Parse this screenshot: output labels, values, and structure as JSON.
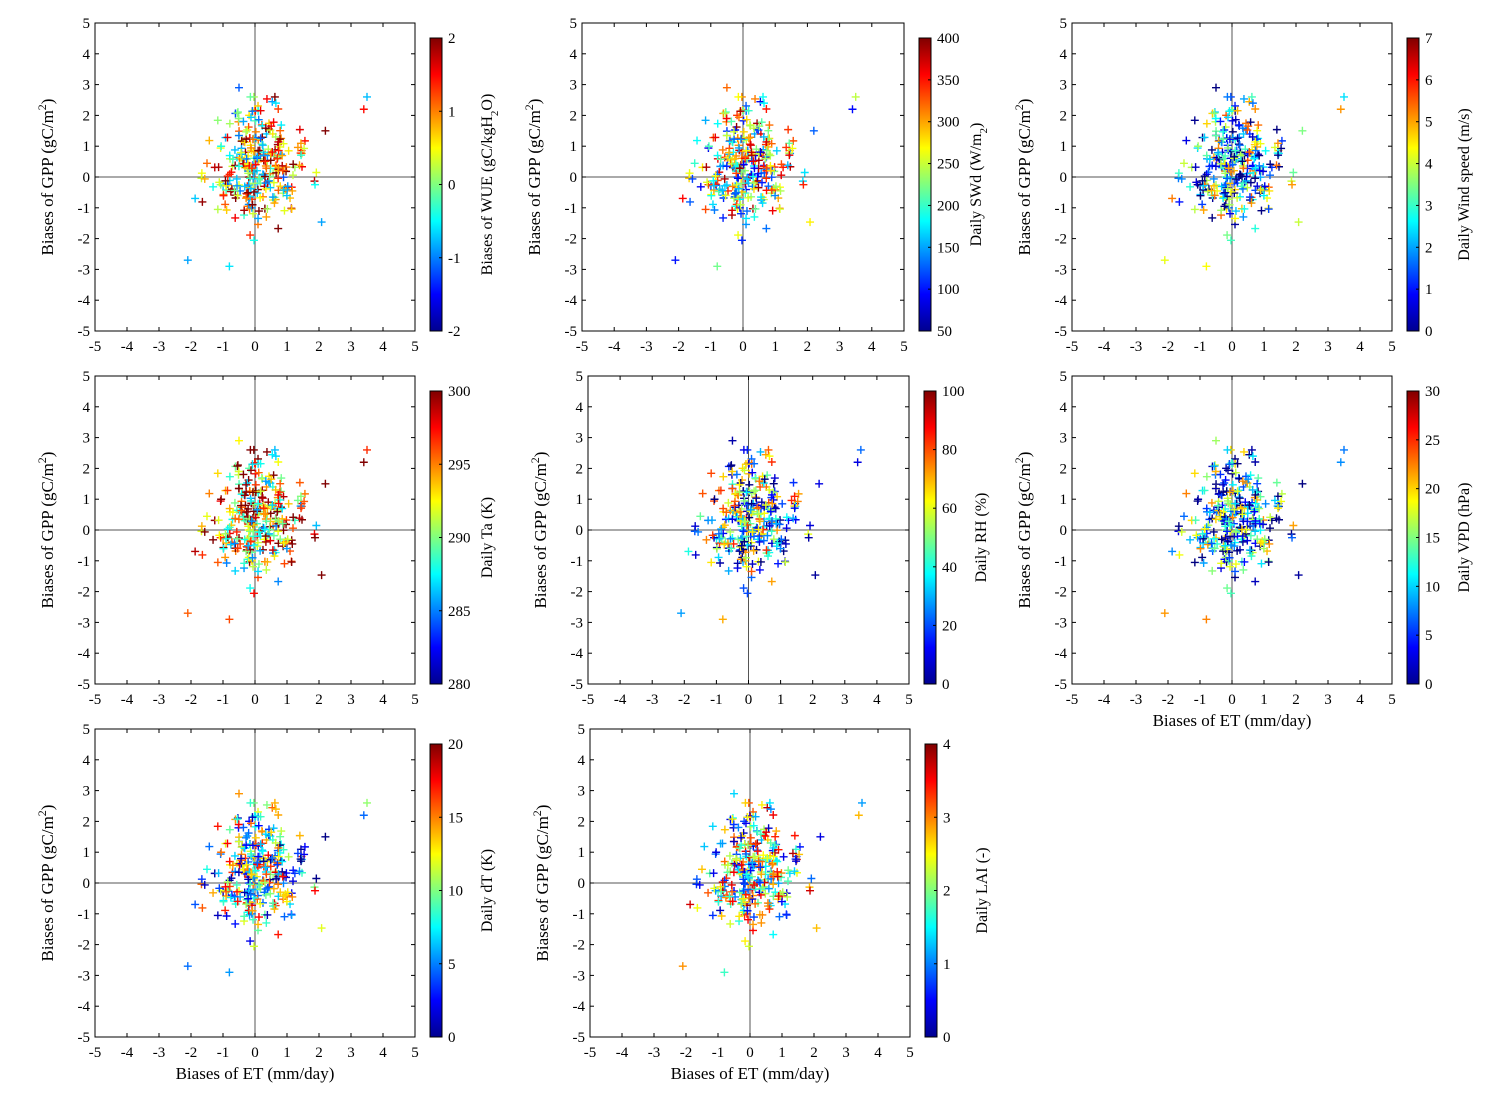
{
  "figure": {
    "x_axis_label": "Biases of ET (mm/day)",
    "y_axis_label": "Biases of GPP (gC/m",
    "y_axis_label_sup": "2",
    "y_axis_label_end": ")"
  },
  "chart_data": [
    {
      "type": "scatter",
      "marker": "+",
      "title": "",
      "xlabel": "Biases of ET (mm/day)",
      "ylabel": "Biases of GPP (gC/m2)",
      "xlim": [
        -5,
        5
      ],
      "ylim": [
        -5,
        5
      ],
      "x_ticks": [
        -5,
        -4,
        -3,
        -2,
        -1,
        0,
        1,
        2,
        3,
        4,
        5
      ],
      "y_ticks": [
        -5,
        -4,
        -3,
        -2,
        -1,
        0,
        1,
        2,
        3,
        4,
        5
      ],
      "show_xlabel": false,
      "colorbar": {
        "label_parts": [
          "Biases of WUE (gC/kgH",
          "2",
          "O)"
        ],
        "min": -2,
        "max": 2,
        "ticks": [
          -2,
          -1,
          0,
          1,
          2
        ]
      },
      "color_bias": 0.15,
      "seed": 11
    },
    {
      "type": "scatter",
      "marker": "+",
      "title": "",
      "xlabel": "Biases of ET (mm/day)",
      "ylabel": "Biases of GPP (gC/m2)",
      "xlim": [
        -5,
        5
      ],
      "ylim": [
        -5,
        5
      ],
      "x_ticks": [
        -5,
        -4,
        -3,
        -2,
        -1,
        0,
        1,
        2,
        3,
        4,
        5
      ],
      "y_ticks": [
        -5,
        -4,
        -3,
        -2,
        -1,
        0,
        1,
        2,
        3,
        4,
        5
      ],
      "show_xlabel": false,
      "colorbar": {
        "label_parts": [
          "Daily SWd (W/m",
          "2",
          ")"
        ],
        "min": 50,
        "max": 400,
        "ticks": [
          50,
          100,
          150,
          200,
          250,
          300,
          350,
          400
        ]
      },
      "color_bias": 0.05,
      "seed": 23
    },
    {
      "type": "scatter",
      "marker": "+",
      "title": "",
      "xlabel": "Biases of ET (mm/day)",
      "ylabel": "Biases of GPP (gC/m2)",
      "xlim": [
        -5,
        5
      ],
      "ylim": [
        -5,
        5
      ],
      "x_ticks": [
        -5,
        -4,
        -3,
        -2,
        -1,
        0,
        1,
        2,
        3,
        4,
        5
      ],
      "y_ticks": [
        -5,
        -4,
        -3,
        -2,
        -1,
        0,
        1,
        2,
        3,
        4,
        5
      ],
      "show_xlabel": false,
      "colorbar": {
        "label_parts": [
          "Daily Wind speed (m/s)"
        ],
        "min": 0,
        "max": 7,
        "ticks": [
          0,
          1,
          2,
          3,
          4,
          5,
          6,
          7
        ]
      },
      "color_bias": -0.15,
      "seed": 37
    },
    {
      "type": "scatter",
      "marker": "+",
      "title": "",
      "xlabel": "Biases of ET (mm/day)",
      "ylabel": "Biases of GPP (gC/m2)",
      "xlim": [
        -5,
        5
      ],
      "ylim": [
        -5,
        5
      ],
      "x_ticks": [
        -5,
        -4,
        -3,
        -2,
        -1,
        0,
        1,
        2,
        3,
        4,
        5
      ],
      "y_ticks": [
        -5,
        -4,
        -3,
        -2,
        -1,
        0,
        1,
        2,
        3,
        4,
        5
      ],
      "show_xlabel": false,
      "colorbar": {
        "label_parts": [
          "Daily Ta (K)"
        ],
        "min": 280,
        "max": 300,
        "ticks": [
          280,
          285,
          290,
          295,
          300
        ]
      },
      "color_bias": 0.2,
      "seed": 41
    },
    {
      "type": "scatter",
      "marker": "+",
      "title": "",
      "xlabel": "Biases of ET (mm/day)",
      "ylabel": "Biases of GPP (gC/m2)",
      "xlim": [
        -5,
        5
      ],
      "ylim": [
        -5,
        5
      ],
      "x_ticks": [
        -5,
        -4,
        -3,
        -2,
        -1,
        0,
        1,
        2,
        3,
        4,
        5
      ],
      "y_ticks": [
        -5,
        -4,
        -3,
        -2,
        -1,
        0,
        1,
        2,
        3,
        4,
        5
      ],
      "show_xlabel": false,
      "colorbar": {
        "label_parts": [
          "Daily RH (%)"
        ],
        "min": 0,
        "max": 100,
        "ticks": [
          0,
          20,
          40,
          60,
          80,
          100
        ]
      },
      "color_bias": -0.1,
      "seed": 53
    },
    {
      "type": "scatter",
      "marker": "+",
      "title": "",
      "xlabel": "Biases of ET (mm/day)",
      "ylabel": "Biases of GPP (gC/m2)",
      "xlim": [
        -5,
        5
      ],
      "ylim": [
        -5,
        5
      ],
      "x_ticks": [
        -5,
        -4,
        -3,
        -2,
        -1,
        0,
        1,
        2,
        3,
        4,
        5
      ],
      "y_ticks": [
        -5,
        -4,
        -3,
        -2,
        -1,
        0,
        1,
        2,
        3,
        4,
        5
      ],
      "show_xlabel": true,
      "colorbar": {
        "label_parts": [
          "Daily VPD (hPa)"
        ],
        "min": 0,
        "max": 30,
        "ticks": [
          0,
          5,
          10,
          15,
          20,
          25,
          30
        ]
      },
      "color_bias": -0.2,
      "seed": 67
    },
    {
      "type": "scatter",
      "marker": "+",
      "title": "",
      "xlabel": "Biases of ET (mm/day)",
      "ylabel": "Biases of GPP (gC/m2)",
      "xlim": [
        -5,
        5
      ],
      "ylim": [
        -5,
        5
      ],
      "x_ticks": [
        -5,
        -4,
        -3,
        -2,
        -1,
        0,
        1,
        2,
        3,
        4,
        5
      ],
      "y_ticks": [
        -5,
        -4,
        -3,
        -2,
        -1,
        0,
        1,
        2,
        3,
        4,
        5
      ],
      "show_xlabel": true,
      "colorbar": {
        "label_parts": [
          "Daily dT (K)"
        ],
        "min": 0,
        "max": 20,
        "ticks": [
          0,
          5,
          10,
          15,
          20
        ]
      },
      "color_bias": -0.05,
      "seed": 79
    },
    {
      "type": "scatter",
      "marker": "+",
      "title": "",
      "xlabel": "Biases of ET (mm/day)",
      "ylabel": "Biases of GPP (gC/m2)",
      "xlim": [
        -5,
        5
      ],
      "ylim": [
        -5,
        5
      ],
      "x_ticks": [
        -5,
        -4,
        -3,
        -2,
        -1,
        0,
        1,
        2,
        3,
        4,
        5
      ],
      "y_ticks": [
        -5,
        -4,
        -3,
        -2,
        -1,
        0,
        1,
        2,
        3,
        4,
        5
      ],
      "show_xlabel": true,
      "colorbar": {
        "label_parts": [
          "Daily LAI (-)"
        ],
        "min": 0,
        "max": 4,
        "ticks": [
          0,
          1,
          2,
          3,
          4
        ]
      },
      "color_bias": 0.0,
      "seed": 97
    }
  ],
  "shared_points": {
    "n_random": 300,
    "outliers": [
      [
        3.4,
        2.2
      ],
      [
        3.5,
        2.6
      ],
      [
        -2.1,
        -2.7
      ],
      [
        -0.8,
        -2.9
      ],
      [
        -0.5,
        2.9
      ],
      [
        2.2,
        1.5
      ]
    ]
  }
}
